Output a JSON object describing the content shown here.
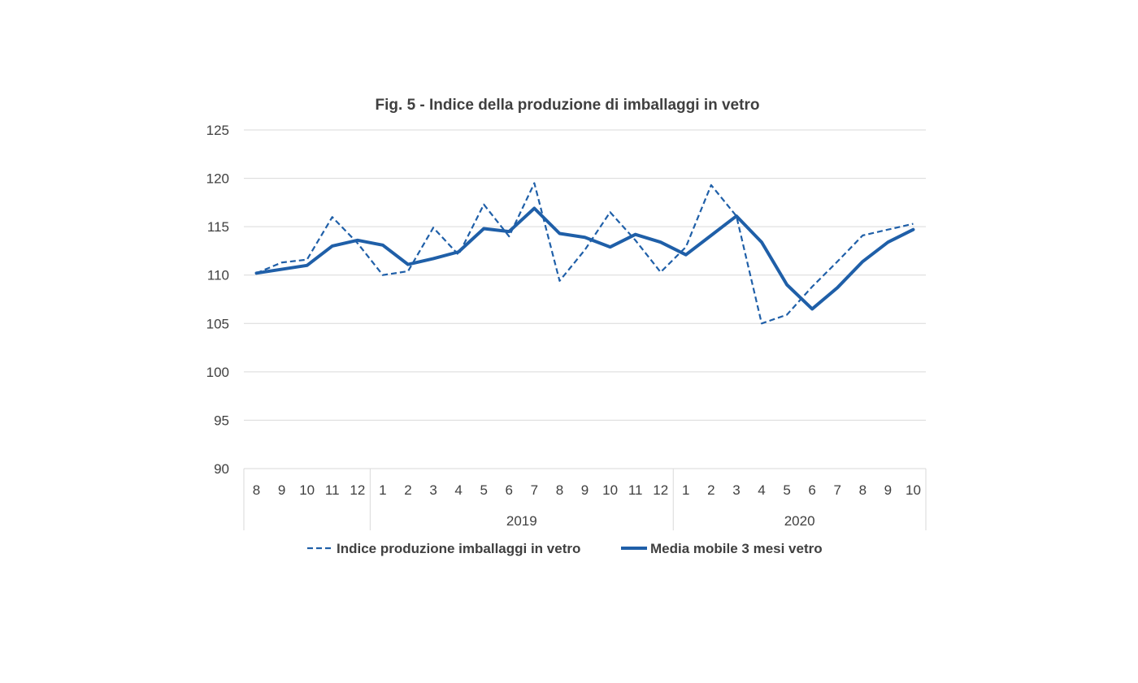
{
  "chart_data": {
    "type": "line",
    "title": "Fig. 5 - Indice della produzione di imballaggi in vetro",
    "xlabel": "",
    "ylabel": "",
    "ylim": [
      90,
      125
    ],
    "yticks": [
      90,
      95,
      100,
      105,
      110,
      115,
      120,
      125
    ],
    "grid": true,
    "legend_position": "bottom",
    "categories": [
      "8",
      "9",
      "10",
      "11",
      "12",
      "1",
      "2",
      "3",
      "4",
      "5",
      "6",
      "7",
      "8",
      "9",
      "10",
      "11",
      "12",
      "1",
      "2",
      "3",
      "4",
      "5",
      "6",
      "7",
      "8",
      "9",
      "10"
    ],
    "groups": [
      {
        "label": "",
        "count": 5
      },
      {
        "label": "2019",
        "count": 12
      },
      {
        "label": "2020",
        "count": 10
      }
    ],
    "series": [
      {
        "name": "Indice produzione imballaggi in vetro",
        "style": "dashed",
        "color": "#1f5fa8",
        "values": [
          110.2,
          111.3,
          111.6,
          116.0,
          113.3,
          110.0,
          110.4,
          114.9,
          112.1,
          117.3,
          114.0,
          119.5,
          109.4,
          112.6,
          116.5,
          113.6,
          110.3,
          112.9,
          119.3,
          116.1,
          105.0,
          105.9,
          108.8,
          111.4,
          114.1,
          114.7,
          115.3
        ]
      },
      {
        "name": "Media mobile 3 mesi vetro",
        "style": "solid",
        "color": "#1f5fa8",
        "values": [
          110.2,
          110.6,
          111.0,
          113.0,
          113.6,
          113.1,
          111.1,
          111.7,
          112.4,
          114.8,
          114.5,
          116.9,
          114.3,
          113.9,
          112.9,
          114.2,
          113.4,
          112.1,
          114.1,
          116.1,
          113.4,
          109.0,
          106.5,
          108.7,
          111.4,
          113.4,
          114.7
        ]
      }
    ]
  }
}
